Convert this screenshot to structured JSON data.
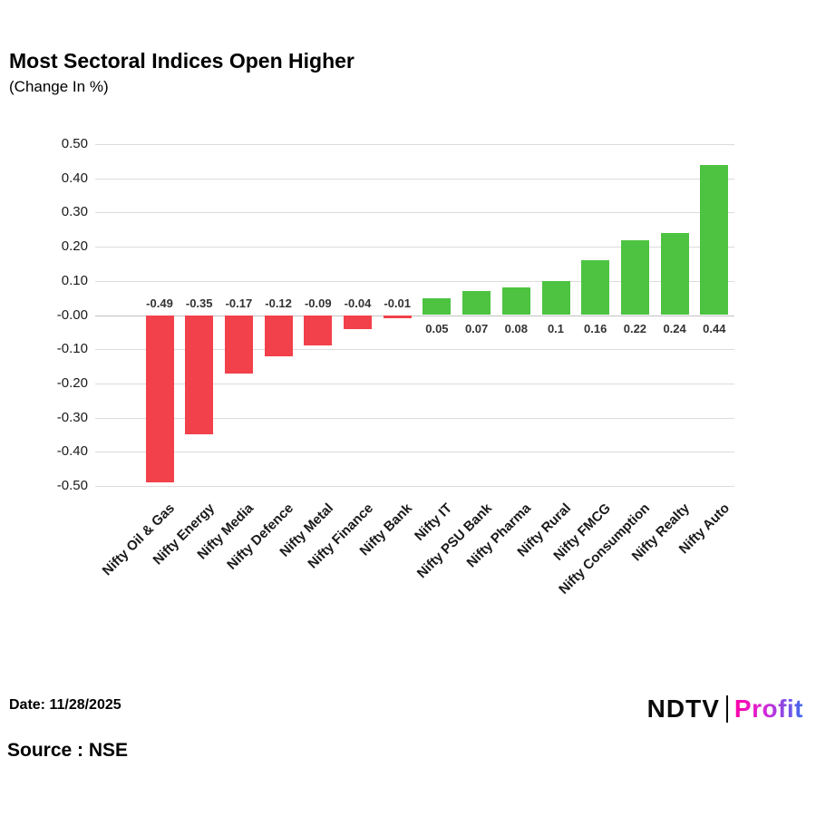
{
  "title": "Most Sectoral Indices Open Higher",
  "subtitle": "(Change In %)",
  "footer": {
    "date": "Date: 11/28/2025",
    "source": "Source : NSE",
    "logo_ndtv": "NDTV",
    "logo_profit": "Profit"
  },
  "colors": {
    "positive": "#4dc341",
    "negative": "#f2414a",
    "grid": "#dcdcdc",
    "value_label": "#333333"
  },
  "chart_data": {
    "type": "bar",
    "title": "Most Sectoral Indices Open Higher",
    "subtitle": "(Change In %)",
    "categories": [
      "Nifty Oil & Gas",
      "Nifty Energy",
      "Nifty Media",
      "Nifty Defence",
      "Nifty Metal",
      "Nifty Finance",
      "Nifty Bank",
      "Nifty IT",
      "Nifty PSU Bank",
      "Nifty Pharma",
      "Nifty Rural",
      "Nifty FMCG",
      "Nifty Consumption",
      "Nifty Realty",
      "Nifty Auto"
    ],
    "values": [
      -0.49,
      -0.35,
      -0.17,
      -0.12,
      -0.09,
      -0.04,
      -0.01,
      0.05,
      0.07,
      0.08,
      0.1,
      0.16,
      0.22,
      0.24,
      0.44
    ],
    "value_labels": [
      "-0.49",
      "-0.35",
      "-0.17",
      "-0.12",
      "-0.09",
      "-0.04",
      "-0.01",
      "0.05",
      "0.07",
      "0.08",
      "0.1",
      "0.16",
      "0.22",
      "0.24",
      "0.44"
    ],
    "y_ticks": [
      "0.50",
      "0.40",
      "0.30",
      "0.20",
      "0.10",
      "-0.00",
      "-0.10",
      "-0.20",
      "-0.30",
      "-0.40",
      "-0.50"
    ],
    "ylim": [
      -0.5,
      0.5
    ],
    "xlabel": "",
    "ylabel": "",
    "grid": true,
    "legend": "none"
  }
}
